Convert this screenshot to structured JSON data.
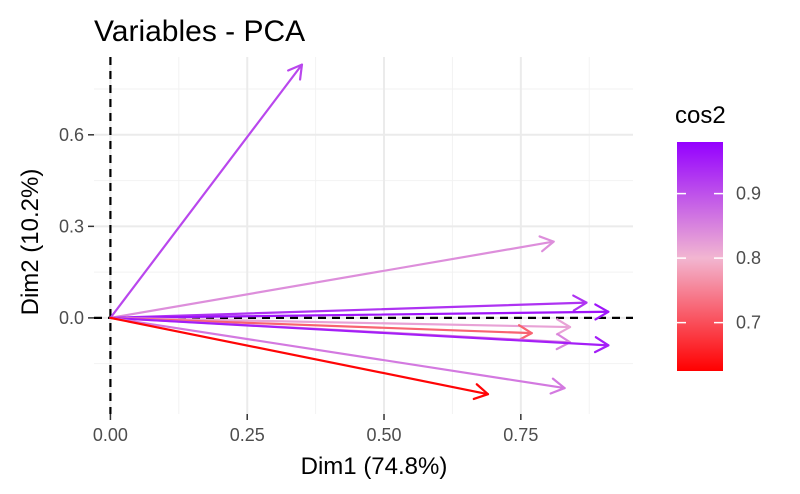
{
  "chart_data": {
    "type": "vector",
    "title": "Variables - PCA",
    "xlabel": "Dim1 (74.8%)",
    "ylabel": "Dim2 (10.2%)",
    "xlim": [
      -0.03,
      0.955
    ],
    "ylim": [
      -0.315,
      0.855
    ],
    "x_ticks": [
      0.0,
      0.25,
      0.5,
      0.75
    ],
    "x_tick_labels": [
      "0.00",
      "0.25",
      "0.50",
      "0.75"
    ],
    "y_ticks": [
      0.0,
      0.3,
      0.6
    ],
    "y_tick_labels": [
      "0.0",
      "0.3",
      "0.6"
    ],
    "grid": true,
    "reference_lines": {
      "x": 0,
      "y": 0,
      "style": "dashed"
    },
    "vectors": [
      {
        "x": 0.35,
        "y": 0.83,
        "cos2": 0.91
      },
      {
        "x": 0.81,
        "y": 0.25,
        "cos2": 0.84
      },
      {
        "x": 0.87,
        "y": 0.05,
        "cos2": 0.93
      },
      {
        "x": 0.91,
        "y": 0.02,
        "cos2": 0.96
      },
      {
        "x": 0.84,
        "y": -0.03,
        "cos2": 0.82
      },
      {
        "x": 0.77,
        "y": -0.05,
        "cos2": 0.72
      },
      {
        "x": 0.84,
        "y": -0.08,
        "cos2": 0.85
      },
      {
        "x": 0.91,
        "y": -0.09,
        "cos2": 0.95
      },
      {
        "x": 0.83,
        "y": -0.23,
        "cos2": 0.86
      },
      {
        "x": 0.69,
        "y": -0.25,
        "cos2": 0.63
      }
    ],
    "legend": {
      "title": "cos2",
      "position": "right",
      "range": [
        0.625,
        0.98
      ],
      "ticks": [
        0.7,
        0.8,
        0.9
      ],
      "tick_labels": [
        "0.7",
        "0.8",
        "0.9"
      ],
      "gradient": [
        {
          "value": 0.625,
          "color": "#ff0000"
        },
        {
          "value": 0.8,
          "color": "#f2b6d1"
        },
        {
          "value": 0.98,
          "color": "#9400ff"
        }
      ]
    }
  }
}
